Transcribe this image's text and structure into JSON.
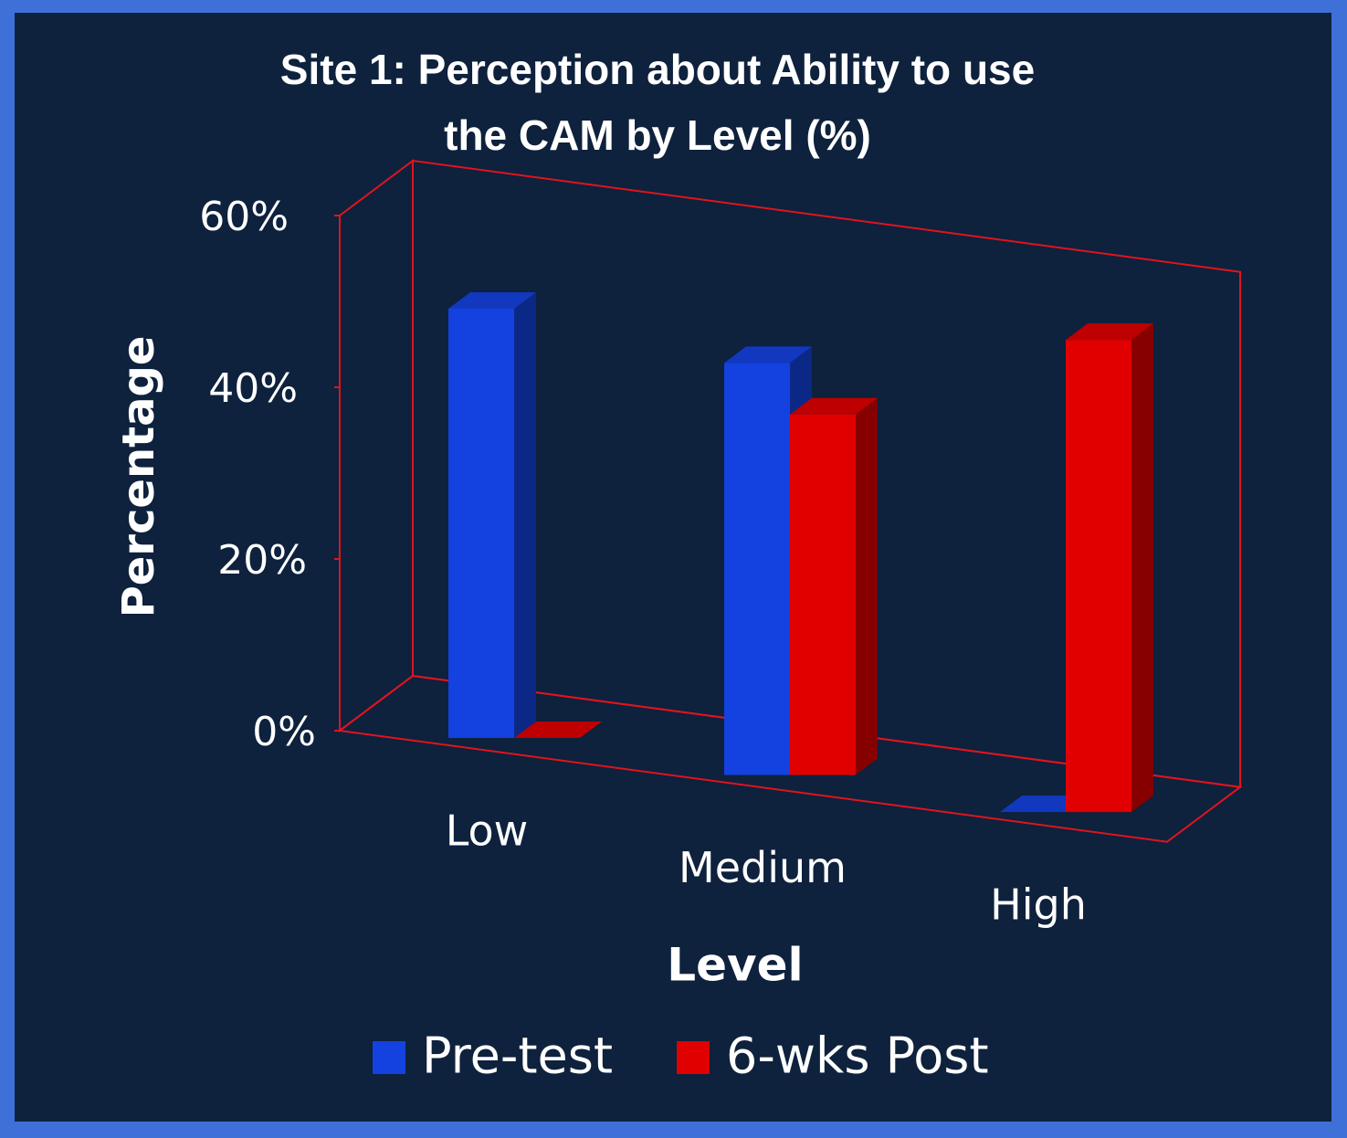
{
  "chart_data": {
    "type": "bar3d",
    "title": "Site 1: Perception about Ability to use the CAM by Level (%)",
    "x_label": "Level",
    "y_label": "Percentage",
    "categories": [
      "Low",
      "Medium",
      "High"
    ],
    "series": [
      {
        "name": "Pre-test",
        "color": "#1442e0",
        "values": [
          50,
          48,
          0
        ]
      },
      {
        "name": "6-wks Post",
        "color": "#e00000",
        "values": [
          0,
          42,
          55
        ]
      }
    ],
    "ylim": [
      0,
      60
    ],
    "yticks": [
      {
        "value": 0,
        "label": "0%"
      },
      {
        "value": 20,
        "label": "20%"
      },
      {
        "value": 40,
        "label": "40%"
      },
      {
        "value": 60,
        "label": "60%"
      }
    ],
    "frame_color": "#e0141e",
    "legend": "bottom"
  }
}
